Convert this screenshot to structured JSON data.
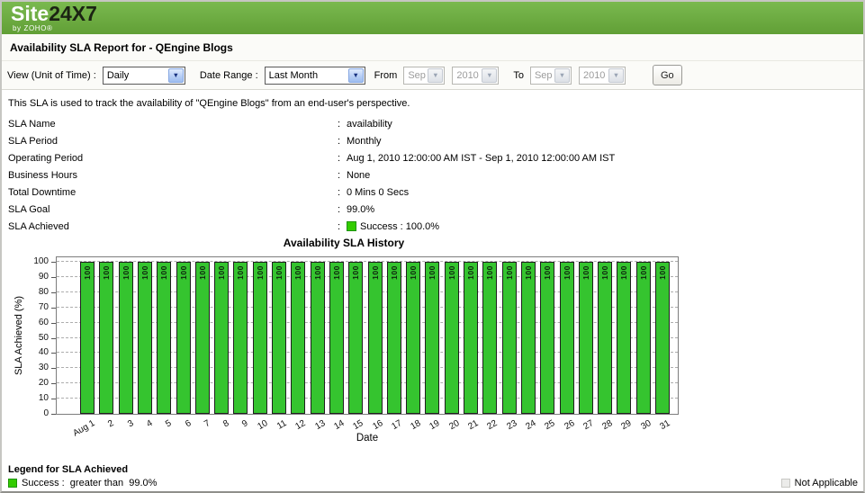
{
  "header": {
    "logo_site": "Site",
    "logo_24x7": "24X7",
    "logo_by": "by ZOHO®"
  },
  "title": "Availability SLA Report for - QEngine Blogs",
  "controls": {
    "view_label": "View (Unit of Time) :",
    "view_value": "Daily",
    "date_range_label": "Date Range :",
    "date_range_value": "Last Month",
    "from_label": "From",
    "from_month": "Sep",
    "from_year": "2010",
    "to_label": "To",
    "to_month": "Sep",
    "to_year": "2010",
    "go_label": "Go"
  },
  "description": "This SLA is used to track the availability of \"QEngine Blogs\" from an end-user's perspective.",
  "details": {
    "colon": ":",
    "rows": [
      {
        "label": "SLA Name",
        "value": "availability"
      },
      {
        "label": "SLA Period",
        "value": "Monthly"
      },
      {
        "label": "Operating Period",
        "value": "Aug 1, 2010 12:00:00 AM IST - Sep 1, 2010 12:00:00 AM IST"
      },
      {
        "label": "Business Hours",
        "value": "None"
      },
      {
        "label": "Total Downtime",
        "value": "0 Mins 0 Secs"
      },
      {
        "label": "SLA Goal",
        "value": "99.0%"
      },
      {
        "label": "SLA Achieved",
        "value": "Success : 100.0%",
        "swatch": "#33cc00"
      }
    ]
  },
  "chart_data": {
    "type": "bar",
    "title": "Availability SLA History",
    "categories": [
      "Aug 1",
      "2",
      "3",
      "4",
      "5",
      "6",
      "7",
      "8",
      "9",
      "10",
      "11",
      "12",
      "13",
      "14",
      "15",
      "16",
      "17",
      "18",
      "19",
      "20",
      "21",
      "22",
      "23",
      "24",
      "25",
      "26",
      "27",
      "28",
      "29",
      "30",
      "31"
    ],
    "values": [
      100,
      100,
      100,
      100,
      100,
      100,
      100,
      100,
      100,
      100,
      100,
      100,
      100,
      100,
      100,
      100,
      100,
      100,
      100,
      100,
      100,
      100,
      100,
      100,
      100,
      100,
      100,
      100,
      100,
      100,
      100
    ],
    "xlabel": "Date",
    "ylabel": "SLA Achieved (%)",
    "ylim": [
      0,
      100
    ],
    "ytick_step": 10,
    "grid": "horizontal-dashed",
    "legend_position": "none",
    "bar_color": "#35c42f",
    "bar_value_label": "100"
  },
  "legend": {
    "title": "Legend for SLA Achieved",
    "success_text": "Success :  greater than  99.0%",
    "success_color": "#33cc00",
    "na_text": "Not Applicable",
    "na_color": "#ececea"
  },
  "colors": {
    "header_green": "#6aac3f",
    "accent_green": "#33cc00"
  }
}
